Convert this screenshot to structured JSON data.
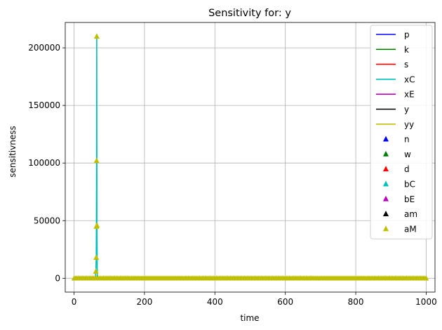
{
  "chart_data": {
    "type": "line",
    "title": "Sensitivity for: y",
    "xlabel": "time",
    "ylabel": "sensitivness",
    "xlim": [
      -25,
      1025
    ],
    "ylim": [
      -12000,
      222000
    ],
    "xticks": [
      0,
      200,
      400,
      600,
      800,
      1000
    ],
    "xtick_labels": [
      "0",
      "200",
      "400",
      "600",
      "800",
      "1000"
    ],
    "yticks": [
      0,
      50000,
      100000,
      150000,
      200000
    ],
    "ytick_labels": [
      "0",
      "50000",
      "100000",
      "150000",
      "200000"
    ],
    "grid": true,
    "legend_position": "upper right",
    "series": [
      {
        "name": "p",
        "kind": "line",
        "color": "#0000ff",
        "x": [
          0,
          1000
        ],
        "y": [
          0,
          0
        ]
      },
      {
        "name": "k",
        "kind": "line",
        "color": "#008000",
        "x": [
          0,
          1000
        ],
        "y": [
          0,
          0
        ]
      },
      {
        "name": "s",
        "kind": "line",
        "color": "#ff0000",
        "x": [
          0,
          1000
        ],
        "y": [
          0,
          0
        ]
      },
      {
        "name": "xC",
        "kind": "line",
        "color": "#00bfbf",
        "x": [
          0,
          60,
          62,
          63,
          63.5,
          64,
          64.5,
          65,
          66,
          68,
          1000
        ],
        "y": [
          0,
          0,
          6000,
          18000,
          45000,
          102000,
          210000,
          46000,
          0,
          0,
          0
        ]
      },
      {
        "name": "xE",
        "kind": "line",
        "color": "#bf00bf",
        "x": [
          0,
          1000
        ],
        "y": [
          0,
          0
        ]
      },
      {
        "name": "y",
        "kind": "line",
        "color": "#000000",
        "x": [
          0,
          1000
        ],
        "y": [
          0,
          0
        ]
      },
      {
        "name": "yy",
        "kind": "line",
        "color": "#bfbf00",
        "x": [
          0,
          1000
        ],
        "y": [
          0,
          0
        ]
      },
      {
        "name": "n",
        "kind": "marker",
        "color": "#0000ff"
      },
      {
        "name": "w",
        "kind": "marker",
        "color": "#008000"
      },
      {
        "name": "d",
        "kind": "marker",
        "color": "#ff0000"
      },
      {
        "name": "bC",
        "kind": "marker",
        "color": "#00bfbf"
      },
      {
        "name": "bE",
        "kind": "marker",
        "color": "#bf00bf"
      },
      {
        "name": "am",
        "kind": "marker",
        "color": "#000000"
      },
      {
        "name": "aM",
        "kind": "marker",
        "color": "#bfbf00",
        "x": [
          62,
          63,
          63.5,
          64,
          64.5,
          65
        ],
        "y": [
          6000,
          18000,
          45000,
          102000,
          210000,
          46000
        ]
      }
    ],
    "marker_baseline": {
      "color": "#bfbf00",
      "x_start": 0,
      "x_end": 1000,
      "y": 0
    }
  }
}
